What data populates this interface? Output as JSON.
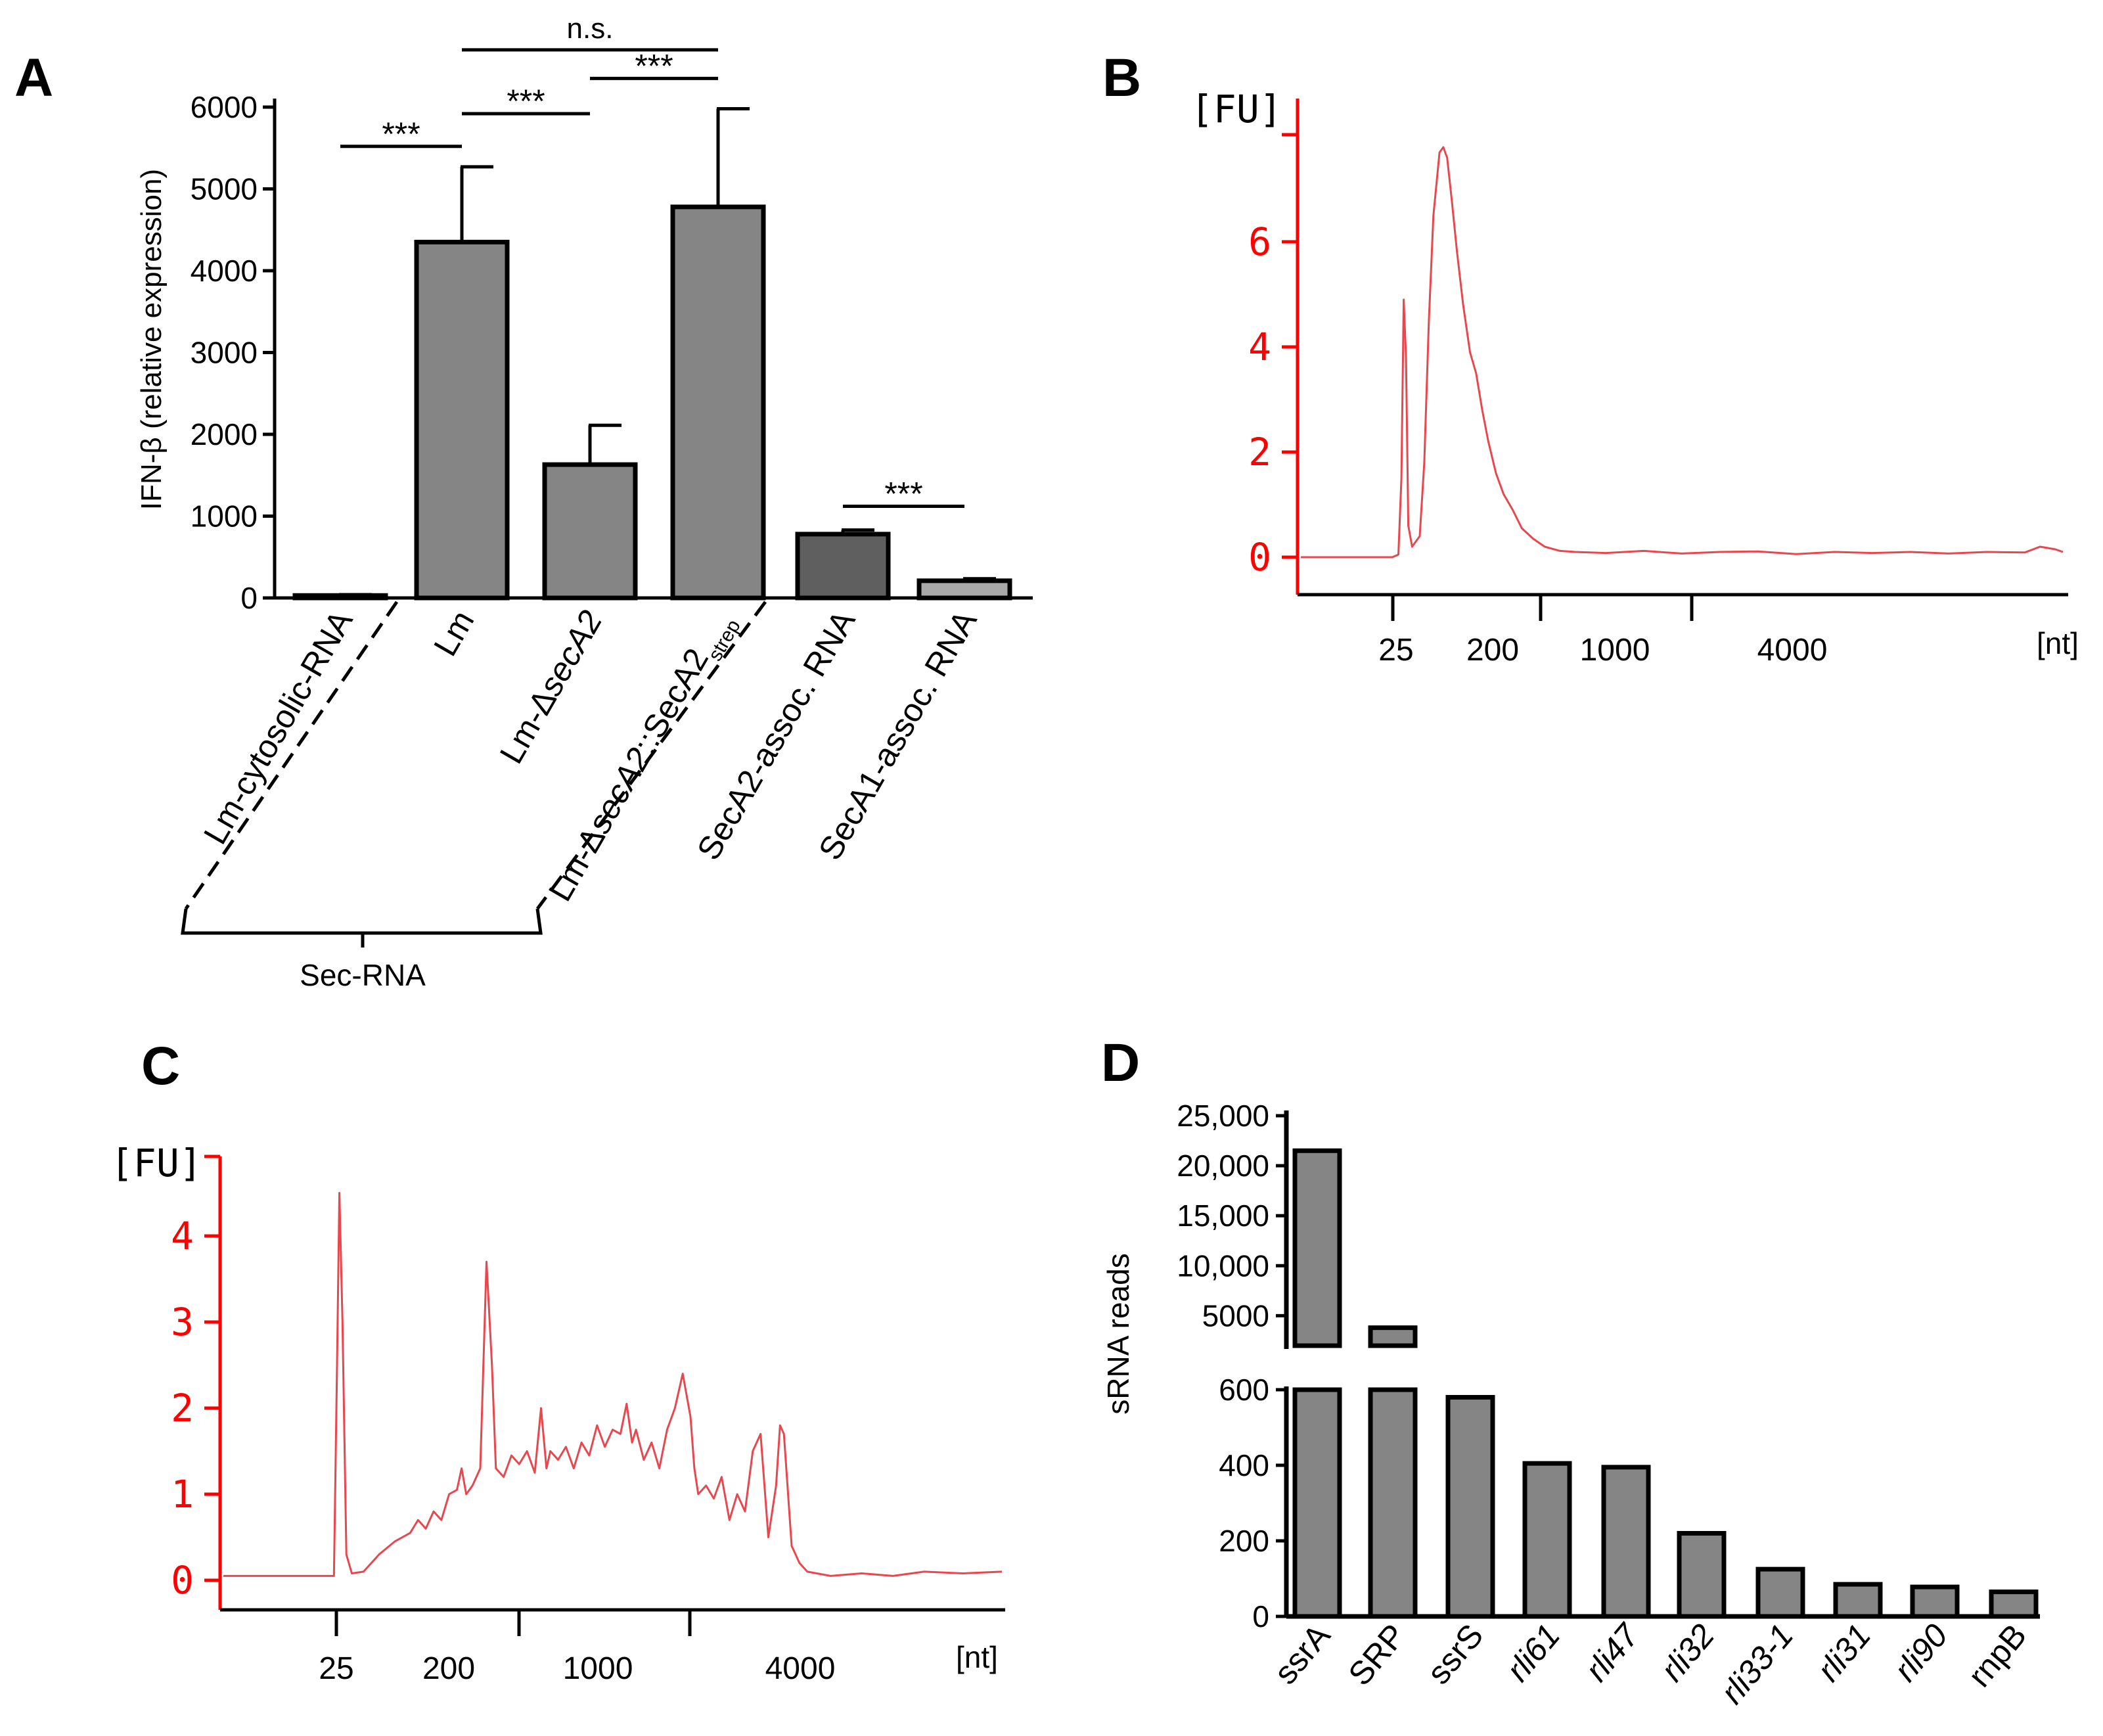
{
  "panels": {
    "A": {
      "letter": "A"
    },
    "B": {
      "letter": "B"
    },
    "C": {
      "letter": "C"
    },
    "D": {
      "letter": "D"
    }
  },
  "colors": {
    "bar": "#858585",
    "bar_dark": "#5f5f5f",
    "bar_light": "#a9a9a9",
    "trace": "#e8474e",
    "axis_red": "#ff0000",
    "ink": "#000000"
  },
  "chart_data": [
    {
      "panel": "A",
      "type": "bar",
      "ylabel": "IFN-β (relative expression)",
      "ylim": [
        0,
        6000
      ],
      "yticks": [
        0,
        1000,
        2000,
        3000,
        4000,
        5000,
        6000
      ],
      "categories": [
        "Lm-cytosolic-RNA",
        "Lm",
        "Lm-ΔsecA2",
        "Lm-ΔsecA2::SecA2strep",
        "SecA2-assoc. RNA",
        "SecA1-assoc. RNA"
      ],
      "category_parts": [
        [
          {
            "t": "Lm-cytosolic-RNA",
            "s": "n"
          }
        ],
        [
          {
            "t": "Lm",
            "s": "n"
          }
        ],
        [
          {
            "t": "Lm-",
            "s": "n"
          },
          {
            "t": "Δ",
            "s": "n"
          },
          {
            "t": "secA2",
            "s": "i"
          }
        ],
        [
          {
            "t": "Lm-",
            "s": "n"
          },
          {
            "t": "Δ",
            "s": "n"
          },
          {
            "t": "secA2",
            "s": "i"
          },
          {
            "t": "::SecA2",
            "s": "n"
          },
          {
            "t": "strep",
            "s": "sub"
          }
        ],
        [
          {
            "t": "SecA2-assoc. RNA",
            "s": "n"
          }
        ],
        [
          {
            "t": "SecA1-assoc. RNA",
            "s": "n"
          }
        ]
      ],
      "values": [
        30,
        4350,
        1630,
        4780,
        780,
        210
      ],
      "errors": [
        10,
        920,
        480,
        1200,
        50,
        25
      ],
      "bar_shades": [
        "bar",
        "bar",
        "bar",
        "bar",
        "bar_dark",
        "bar_light"
      ],
      "significance": [
        {
          "from": 0,
          "to": 1,
          "label": "***",
          "level": 5520
        },
        {
          "from": 1,
          "to": 2,
          "label": "***",
          "level": 5920
        },
        {
          "from": 2,
          "to": 3,
          "label": "***",
          "level": 6350
        },
        {
          "from": 1,
          "to": 3,
          "label": "n.s.",
          "level": 6700
        },
        {
          "from": 4,
          "to": 5,
          "label": "***",
          "level": 1120
        }
      ],
      "group_label": "Sec-RNA",
      "group_members": [
        1,
        2,
        3
      ]
    },
    {
      "panel": "B",
      "type": "line",
      "ylabel": "[FU]",
      "xlabel": "[nt]",
      "ylim": [
        -0.8,
        8.0
      ],
      "yticks": [
        0,
        2,
        4,
        6
      ],
      "xticks": [
        "25",
        "200",
        "1000",
        "4000"
      ],
      "xlim": [
        0,
        100
      ],
      "trace": [
        [
          0,
          0
        ],
        [
          12,
          0
        ],
        [
          12.8,
          0.05
        ],
        [
          13.2,
          1.5
        ],
        [
          13.5,
          4.9
        ],
        [
          13.8,
          3.8
        ],
        [
          14.1,
          0.6
        ],
        [
          14.6,
          0.2
        ],
        [
          15.6,
          0.4
        ],
        [
          16.2,
          1.8
        ],
        [
          16.8,
          4.5
        ],
        [
          17.4,
          6.5
        ],
        [
          18.2,
          7.7
        ],
        [
          18.7,
          7.8
        ],
        [
          19.2,
          7.6
        ],
        [
          19.8,
          6.8
        ],
        [
          20.5,
          5.8
        ],
        [
          21.3,
          4.8
        ],
        [
          22.2,
          3.9
        ],
        [
          23.0,
          3.5
        ],
        [
          23.8,
          2.8
        ],
        [
          24.6,
          2.2
        ],
        [
          25.6,
          1.6
        ],
        [
          26.6,
          1.2
        ],
        [
          27.8,
          0.9
        ],
        [
          29.0,
          0.55
        ],
        [
          30.5,
          0.35
        ],
        [
          32,
          0.2
        ],
        [
          34,
          0.12
        ],
        [
          36,
          0.1
        ],
        [
          40,
          0.08
        ],
        [
          45,
          0.12
        ],
        [
          50,
          0.07
        ],
        [
          55,
          0.1
        ],
        [
          60,
          0.11
        ],
        [
          65,
          0.06
        ],
        [
          70,
          0.1
        ],
        [
          75,
          0.08
        ],
        [
          80,
          0.1
        ],
        [
          85,
          0.07
        ],
        [
          90,
          0.1
        ],
        [
          95,
          0.09
        ],
        [
          97,
          0.2
        ],
        [
          99,
          0.15
        ],
        [
          100,
          0.1
        ]
      ]
    },
    {
      "panel": "C",
      "type": "line",
      "ylabel": "[FU]",
      "xlabel": "[nt]",
      "ylim": [
        -0.5,
        5.0
      ],
      "yticks": [
        0,
        1,
        2,
        3,
        4
      ],
      "xticks": [
        "25",
        "200",
        "1000",
        "4000"
      ],
      "xlim": [
        0,
        100
      ],
      "trace": [
        [
          0,
          0.05
        ],
        [
          10,
          0.05
        ],
        [
          14.2,
          0.05
        ],
        [
          14.6,
          2.5
        ],
        [
          14.9,
          4.5
        ],
        [
          15.3,
          3.0
        ],
        [
          15.8,
          0.3
        ],
        [
          16.5,
          0.08
        ],
        [
          18,
          0.1
        ],
        [
          20,
          0.3
        ],
        [
          22,
          0.45
        ],
        [
          24,
          0.55
        ],
        [
          25,
          0.7
        ],
        [
          26,
          0.6
        ],
        [
          27,
          0.8
        ],
        [
          28,
          0.7
        ],
        [
          29,
          1.0
        ],
        [
          30,
          1.05
        ],
        [
          30.6,
          1.3
        ],
        [
          31.2,
          1.0
        ],
        [
          32,
          1.1
        ],
        [
          33,
          1.3
        ],
        [
          33.8,
          3.7
        ],
        [
          34.5,
          2.5
        ],
        [
          35,
          1.3
        ],
        [
          36,
          1.2
        ],
        [
          37,
          1.45
        ],
        [
          38,
          1.35
        ],
        [
          39,
          1.5
        ],
        [
          40,
          1.25
        ],
        [
          40.8,
          2.0
        ],
        [
          41.5,
          1.3
        ],
        [
          42,
          1.5
        ],
        [
          43,
          1.4
        ],
        [
          44,
          1.55
        ],
        [
          45,
          1.3
        ],
        [
          46,
          1.6
        ],
        [
          47,
          1.45
        ],
        [
          48,
          1.8
        ],
        [
          49,
          1.55
        ],
        [
          50,
          1.75
        ],
        [
          51,
          1.7
        ],
        [
          51.8,
          2.05
        ],
        [
          52.5,
          1.6
        ],
        [
          53,
          1.75
        ],
        [
          54,
          1.4
        ],
        [
          55,
          1.6
        ],
        [
          56,
          1.3
        ],
        [
          57,
          1.75
        ],
        [
          58,
          2.0
        ],
        [
          59,
          2.4
        ],
        [
          60,
          1.9
        ],
        [
          60.5,
          1.3
        ],
        [
          61,
          1.0
        ],
        [
          62,
          1.1
        ],
        [
          63,
          0.95
        ],
        [
          64,
          1.2
        ],
        [
          65,
          0.7
        ],
        [
          66,
          1.0
        ],
        [
          67,
          0.8
        ],
        [
          68,
          1.5
        ],
        [
          69,
          1.7
        ],
        [
          70,
          0.5
        ],
        [
          71,
          1.1
        ],
        [
          71.5,
          1.8
        ],
        [
          72,
          1.7
        ],
        [
          73,
          0.4
        ],
        [
          74,
          0.2
        ],
        [
          75,
          0.1
        ],
        [
          78,
          0.05
        ],
        [
          82,
          0.08
        ],
        [
          86,
          0.05
        ],
        [
          90,
          0.1
        ],
        [
          95,
          0.08
        ],
        [
          100,
          0.1
        ]
      ]
    },
    {
      "panel": "D",
      "type": "bar",
      "ylabel": "sRNA reads",
      "categories": [
        "ssrA",
        "SRP",
        "ssrS",
        "rli61",
        "rli47",
        "rli32",
        "rli33-1",
        "rli31",
        "rli90",
        "rnpB"
      ],
      "category_italic": [
        false,
        false,
        false,
        true,
        true,
        true,
        true,
        true,
        true,
        false
      ],
      "values": [
        21500,
        3800,
        580,
        405,
        395,
        220,
        125,
        85,
        78,
        65
      ],
      "lower_ylim": [
        0,
        600
      ],
      "lower_yticks": [
        0,
        200,
        400,
        600
      ],
      "upper_ylim": [
        0,
        25000
      ],
      "upper_yticks": [
        "5000",
        "10,000",
        "15,000",
        "20,000",
        "25,000"
      ],
      "upper_ytick_values": [
        5000,
        10000,
        15000,
        20000,
        25000
      ]
    }
  ]
}
